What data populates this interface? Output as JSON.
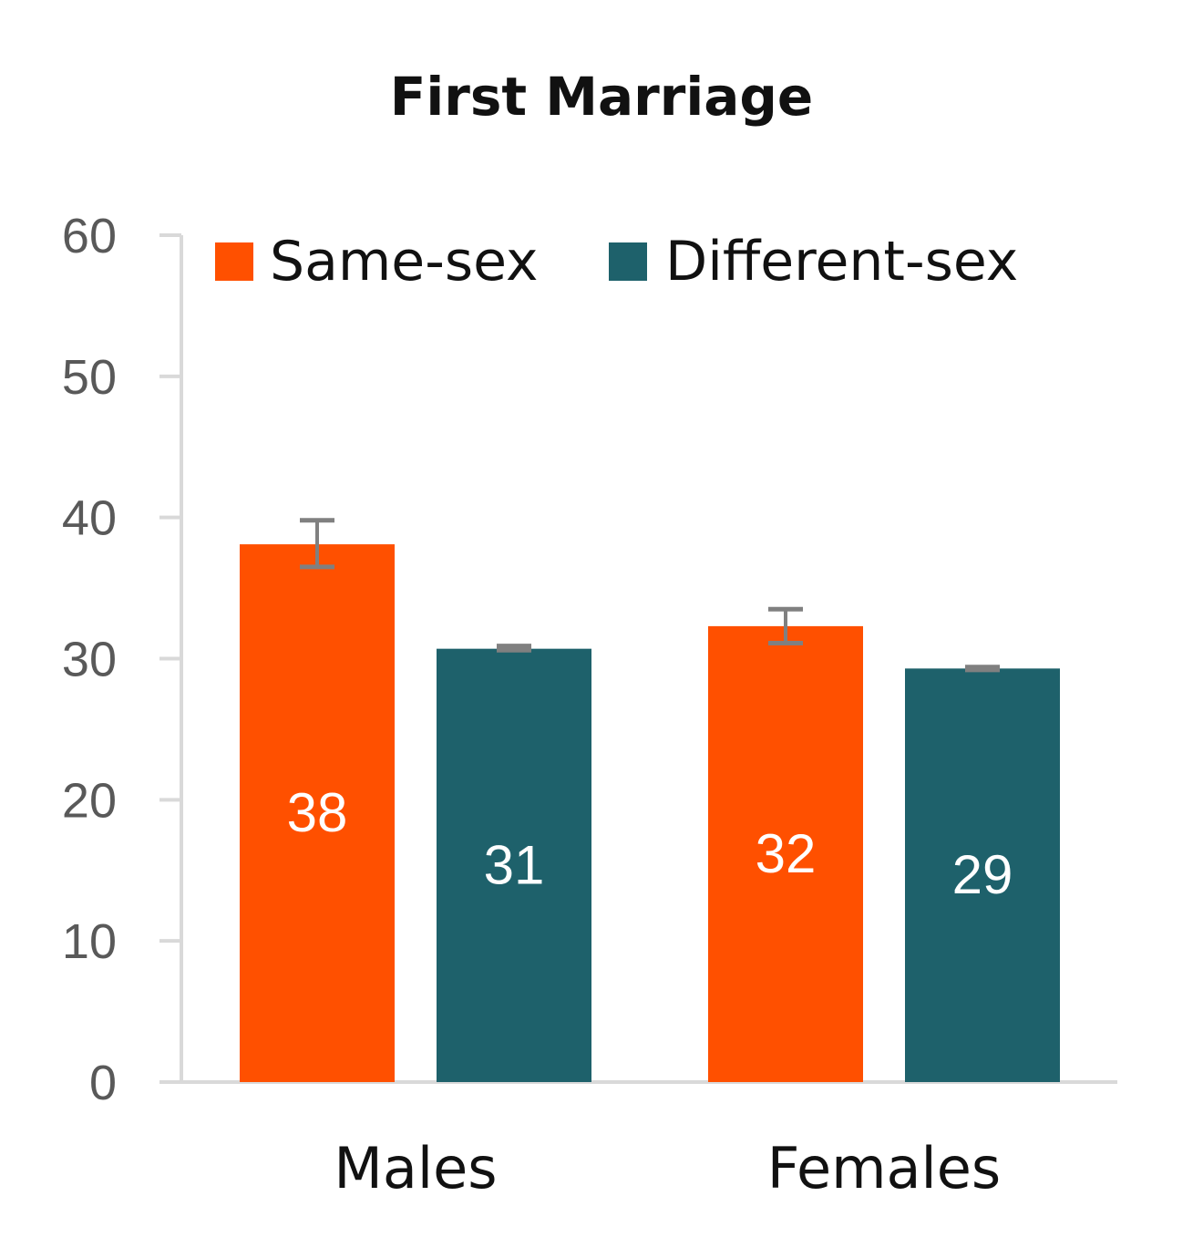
{
  "chart_data": {
    "type": "bar",
    "title": "First Marriage",
    "xlabel": "",
    "ylabel": "",
    "categories": [
      "Males",
      "Females"
    ],
    "ylim": [
      0,
      60
    ],
    "yticks": [
      0,
      10,
      20,
      30,
      40,
      50,
      60
    ],
    "grid": false,
    "legend": "top",
    "series": [
      {
        "name": "Same-sex",
        "color": "#FF5000",
        "values": [
          38.1,
          32.3
        ],
        "labels": [
          "38",
          "32"
        ],
        "error_low": [
          36.5,
          31.1
        ],
        "error_high": [
          39.8,
          33.5
        ]
      },
      {
        "name": "Different-sex",
        "color": "#1E616B",
        "values": [
          30.7,
          29.3
        ],
        "labels": [
          "31",
          "29"
        ],
        "error_low": [
          30.6,
          29.2
        ],
        "error_high": [
          30.9,
          29.4
        ]
      }
    ],
    "error_bar_color": "#808080",
    "axis_color": "#D9D9D9"
  }
}
